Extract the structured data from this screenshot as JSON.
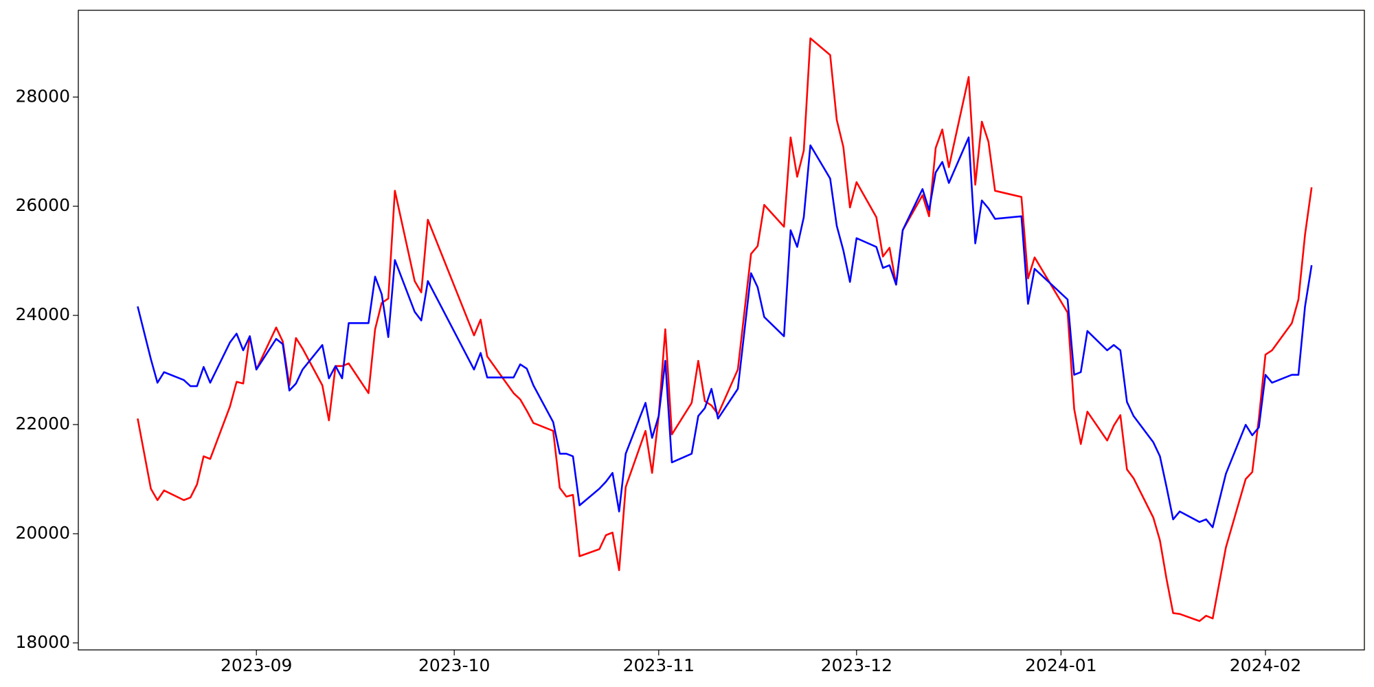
{
  "chart_data": {
    "type": "line",
    "x": [
      "2023-08-14",
      "2023-08-16",
      "2023-08-17",
      "2023-08-18",
      "2023-08-21",
      "2023-08-22",
      "2023-08-23",
      "2023-08-24",
      "2023-08-25",
      "2023-08-28",
      "2023-08-29",
      "2023-08-30",
      "2023-08-31",
      "2023-09-01",
      "2023-09-04",
      "2023-09-05",
      "2023-09-06",
      "2023-09-07",
      "2023-09-08",
      "2023-09-11",
      "2023-09-12",
      "2023-09-13",
      "2023-09-14",
      "2023-09-15",
      "2023-09-18",
      "2023-09-19",
      "2023-09-20",
      "2023-09-21",
      "2023-09-22",
      "2023-09-25",
      "2023-09-26",
      "2023-09-27",
      "2023-10-04",
      "2023-10-05",
      "2023-10-06",
      "2023-10-10",
      "2023-10-11",
      "2023-10-12",
      "2023-10-13",
      "2023-10-16",
      "2023-10-17",
      "2023-10-18",
      "2023-10-19",
      "2023-10-20",
      "2023-10-23",
      "2023-10-24",
      "2023-10-25",
      "2023-10-26",
      "2023-10-27",
      "2023-10-30",
      "2023-10-31",
      "2023-11-01",
      "2023-11-02",
      "2023-11-03",
      "2023-11-06",
      "2023-11-07",
      "2023-11-08",
      "2023-11-09",
      "2023-11-10",
      "2023-11-13",
      "2023-11-15",
      "2023-11-16",
      "2023-11-17",
      "2023-11-20",
      "2023-11-21",
      "2023-11-22",
      "2023-11-23",
      "2023-11-24",
      "2023-11-27",
      "2023-11-28",
      "2023-11-29",
      "2023-11-30",
      "2023-12-01",
      "2023-12-04",
      "2023-12-05",
      "2023-12-06",
      "2023-12-07",
      "2023-12-08",
      "2023-12-11",
      "2023-12-12",
      "2023-12-13",
      "2023-12-14",
      "2023-12-15",
      "2023-12-18",
      "2023-12-19",
      "2023-12-20",
      "2023-12-21",
      "2023-12-22",
      "2023-12-26",
      "2023-12-27",
      "2023-12-28",
      "2024-01-02",
      "2024-01-03",
      "2024-01-04",
      "2024-01-05",
      "2024-01-08",
      "2024-01-09",
      "2024-01-10",
      "2024-01-11",
      "2024-01-12",
      "2024-01-15",
      "2024-01-16",
      "2024-01-17",
      "2024-01-18",
      "2024-01-19",
      "2024-01-22",
      "2024-01-23",
      "2024-01-24",
      "2024-01-26",
      "2024-01-29",
      "2024-01-30",
      "2024-01-31",
      "2024-02-01",
      "2024-02-02",
      "2024-02-05",
      "2024-02-06",
      "2024-02-07",
      "2024-02-08"
    ],
    "series": [
      {
        "color": "#ff0000",
        "values": [
          22109,
          20825,
          20616,
          20793,
          20616,
          20664,
          20905,
          21419,
          21371,
          22334,
          22783,
          22751,
          23618,
          23008,
          23778,
          23522,
          22719,
          23586,
          23393,
          22719,
          22077,
          23072,
          23072,
          23120,
          22575,
          23746,
          24228,
          24308,
          26283,
          24629,
          24421,
          25753,
          23634,
          23923,
          23249,
          22575,
          22462,
          22254,
          22029,
          21884,
          20841,
          20680,
          20712,
          19589,
          19717,
          19974,
          20022,
          19332,
          20857,
          21884,
          21114,
          22157,
          23746,
          21820,
          22398,
          23168,
          22430,
          22350,
          22189,
          23008,
          25126,
          25270,
          26025,
          25624,
          27261,
          26539,
          27020,
          29075,
          28770,
          27582,
          27084,
          25977,
          26442,
          25800,
          25078,
          25239,
          24564,
          25560,
          26202,
          25816,
          27068,
          27405,
          26715,
          28368,
          26394,
          27550,
          27181,
          26283,
          26170,
          24677,
          25062,
          24051,
          22285,
          21643,
          22237,
          21708,
          21980,
          22173,
          21178,
          21017,
          20295,
          19878,
          19172,
          18546,
          18530,
          18401,
          18498,
          18449,
          19749,
          21001,
          21130,
          22109,
          23281,
          23361,
          23858,
          24292,
          25479,
          26346
        ]
      },
      {
        "color": "#0000ff",
        "values": [
          24164,
          23200,
          22767,
          22960,
          22815,
          22703,
          22703,
          23056,
          22767,
          23506,
          23666,
          23361,
          23618,
          23008,
          23570,
          23474,
          22623,
          22751,
          23008,
          23457,
          22847,
          23072,
          22847,
          23859,
          23859,
          24710,
          24389,
          23602,
          25014,
          24067,
          23907,
          24629,
          23008,
          23313,
          22863,
          22863,
          23104,
          23024,
          22719,
          22045,
          21467,
          21467,
          21419,
          20520,
          20825,
          20953,
          21114,
          20408,
          21467,
          22398,
          21756,
          22157,
          23168,
          21306,
          21467,
          22157,
          22301,
          22655,
          22109,
          22655,
          24773,
          24516,
          23971,
          23618,
          25560,
          25255,
          25800,
          27116,
          26507,
          25640,
          25190,
          24613,
          25415,
          25255,
          24869,
          24918,
          24564,
          25560,
          26314,
          25929,
          26619,
          26811,
          26426,
          27261,
          25319,
          26105,
          25961,
          25768,
          25816,
          24211,
          24853,
          24292,
          22911,
          22960,
          23714,
          23361,
          23457,
          23361,
          22414,
          22157,
          21675,
          21419,
          20857,
          20263,
          20408,
          20215,
          20263,
          20119,
          21098,
          21996,
          21804,
          21948,
          22911,
          22767,
          22911,
          22911,
          24164,
          24918
        ]
      }
    ],
    "xlim": [
      "2023-08-05",
      "2024-02-16"
    ],
    "xticks": [
      {
        "value": "2023-09-01",
        "label": "2023-09"
      },
      {
        "value": "2023-10-01",
        "label": "2023-10"
      },
      {
        "value": "2023-11-01",
        "label": "2023-11"
      },
      {
        "value": "2023-12-01",
        "label": "2023-12"
      },
      {
        "value": "2024-01-01",
        "label": "2024-01"
      },
      {
        "value": "2024-02-01",
        "label": "2024-02"
      }
    ],
    "ylim": [
      17872,
      29589
    ],
    "yticks": [
      18000,
      20000,
      22000,
      24000,
      26000,
      28000
    ],
    "grid": false
  }
}
